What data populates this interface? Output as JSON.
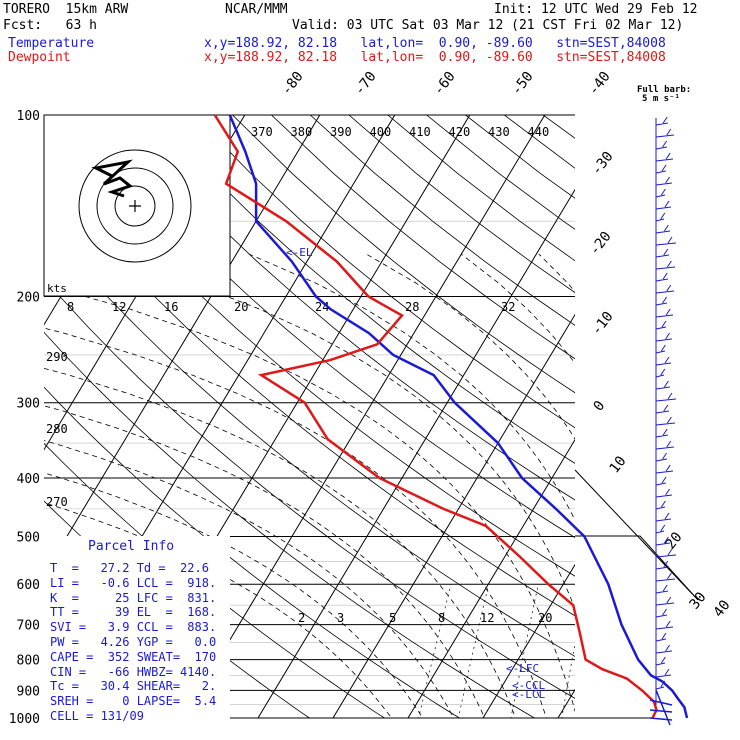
{
  "header": {
    "model": "TORERO  15km ARW",
    "org": "NCAR/MMM",
    "init": "Init: 12 UTC Wed 29 Feb 12",
    "fcst": "Fcst:   63 h",
    "valid": "Valid: 03 UTC Sat 03 Mar 12 (21 CST Fri 02 Mar 12)",
    "temp_label": "Temperature",
    "dew_label": "Dewpoint",
    "loc_line": "x,y=188.92, 82.18   lat,lon=  0.90, -89.60   stn=SEST,84008",
    "barb_note": "Full barb:",
    "barb_note2": "5 m s⁻¹"
  },
  "parcel_info": {
    "title": "Parcel Info",
    "rows": [
      "T  =   27.2 Td =  22.6",
      "LI =   -0.6 LCL =  918.",
      "K  =     25 LFC =  831.",
      "TT =     39 EL  =  168.",
      "SVI =   3.9 CCL =  883.",
      "PW =   4.26 YGP =   0.0",
      "CAPE =  352 SWEAT=  170",
      "CIN =   -66 HWBZ= 4140.",
      "Tc =   30.4 SHEAR=   2.",
      "SREH =    0 LAPSE=  5.4",
      "CELL = 131/09"
    ]
  },
  "colors": {
    "temperature": "#1a1ad6",
    "dewpoint": "#e01818",
    "grid": "#000000"
  },
  "chart_data": {
    "type": "line",
    "subtype": "skew-T log-p",
    "y_axis": {
      "label": "",
      "scale": "log",
      "ticks": [
        100,
        200,
        300,
        400,
        500,
        600,
        700,
        800,
        900,
        1000
      ]
    },
    "isotherm_labels": [
      -80,
      -70,
      -60,
      -50,
      -40,
      -30,
      -20,
      -10,
      0,
      10,
      20,
      30,
      40
    ],
    "theta_labels": [
      370,
      380,
      390,
      400,
      410,
      420,
      430,
      440
    ],
    "upper_mixing_labels": [
      "8",
      "12",
      "16",
      "20",
      "24",
      "28",
      "32"
    ],
    "lower_mixing_labels": [
      "2",
      "3",
      "5",
      "8",
      "12",
      "20"
    ],
    "theta_side_labels": [
      "290",
      "280",
      "270"
    ],
    "hodo_units": "kts",
    "level_markers": [
      "<-EL",
      "<-LFC",
      "<-CCL",
      "<-LCL"
    ],
    "series": [
      {
        "name": "Temperature",
        "color": "#1a1ad6",
        "points": [
          [
            27.2,
            1000
          ],
          [
            26,
            960
          ],
          [
            24.5,
            930
          ],
          [
            23,
            900
          ],
          [
            21,
            870
          ],
          [
            19,
            850
          ],
          [
            16,
            800
          ],
          [
            11,
            700
          ],
          [
            6,
            600
          ],
          [
            -1,
            500
          ],
          [
            -7,
            450
          ],
          [
            -14,
            400
          ],
          [
            -20,
            350
          ],
          [
            -29,
            300
          ],
          [
            -34,
            270
          ],
          [
            -41,
            250
          ],
          [
            -46,
            230
          ],
          [
            -53,
            210
          ],
          [
            -56,
            200
          ],
          [
            -62,
            175
          ],
          [
            -70,
            150
          ],
          [
            -73,
            130
          ],
          [
            -77,
            115
          ],
          [
            -82,
            100
          ]
        ]
      },
      {
        "name": "Dewpoint",
        "color": "#e01818",
        "points": [
          [
            22.6,
            1000
          ],
          [
            22.5,
            970
          ],
          [
            21.5,
            940
          ],
          [
            19,
            900
          ],
          [
            16,
            860
          ],
          [
            12,
            830
          ],
          [
            9,
            800
          ],
          [
            6,
            720
          ],
          [
            3,
            650
          ],
          [
            -2,
            600
          ],
          [
            -8,
            540
          ],
          [
            -15,
            480
          ],
          [
            -22,
            450
          ],
          [
            -33,
            400
          ],
          [
            -43,
            345
          ],
          [
            -49,
            300
          ],
          [
            -57,
            270
          ],
          [
            -49,
            255
          ],
          [
            -44,
            240
          ],
          [
            -43,
            215
          ],
          [
            -49,
            200
          ],
          [
            -56,
            175
          ],
          [
            -66,
            150
          ],
          [
            -77,
            130
          ],
          [
            -78,
            115
          ],
          [
            -84,
            100
          ]
        ]
      }
    ]
  }
}
